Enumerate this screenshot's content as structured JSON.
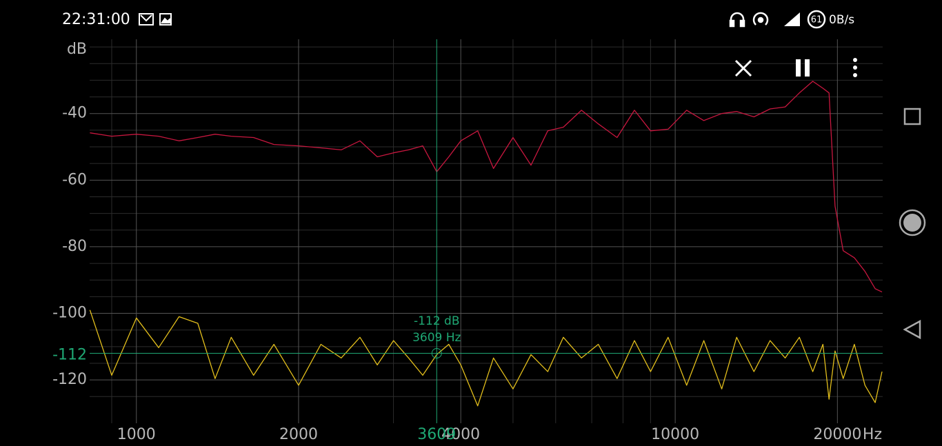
{
  "status_bar": {
    "time": "22:31:00",
    "battery": "61",
    "network_speed": "0B/s"
  },
  "chart_data": {
    "type": "line",
    "y_label": "dB",
    "x_label": "Hz",
    "log_x": true,
    "grid": true,
    "xlim": [
      819,
      24270
    ],
    "ylim": [
      -129.7,
      -17.7
    ],
    "xticks": [
      1000,
      2000,
      4000,
      10000,
      20000
    ],
    "minor_xticks": [
      900,
      3000,
      5000,
      6000,
      7000,
      8000,
      9000
    ],
    "yticks": [
      -40,
      -60,
      -80,
      -100,
      -120
    ],
    "minor_yticks": [
      -20,
      -25,
      -30,
      -35,
      -45,
      -50,
      -55,
      -65,
      -70,
      -75,
      -85,
      -90,
      -95,
      -105,
      -110,
      -115,
      -125
    ],
    "cursor": {
      "x": 3609,
      "y": -112,
      "color": "#1fa874",
      "annotations": [
        "-112 dB",
        "3609 Hz"
      ]
    },
    "x": [
      820,
      900,
      1000,
      1100,
      1200,
      1300,
      1400,
      1500,
      1650,
      1800,
      2000,
      2200,
      2400,
      2600,
      2800,
      3000,
      3200,
      3400,
      3609,
      3800,
      4000,
      4300,
      4600,
      5000,
      5400,
      5800,
      6200,
      6700,
      7200,
      7800,
      8400,
      9000,
      9700,
      10500,
      11300,
      12200,
      13000,
      14000,
      15000,
      16000,
      17000,
      18000,
      18800,
      19300,
      19800,
      20500,
      21500,
      22500,
      23500,
      24200
    ],
    "series": [
      {
        "color": "#c8173f",
        "values": [
          -45.8,
          -46.8,
          -46.2,
          -46.8,
          -48.2,
          -47.2,
          -46.2,
          -46.8,
          -47.2,
          -49.3,
          -49.7,
          -50.3,
          -50.9,
          -48.2,
          -53,
          -51.8,
          -50.9,
          -49.7,
          -57.5,
          -53,
          -48.2,
          -45.2,
          -56.5,
          -47.2,
          -55.5,
          -45.2,
          -44.1,
          -39,
          -43.1,
          -47.2,
          -39,
          -45.2,
          -44.7,
          -39,
          -42.1,
          -40,
          -39.4,
          -41,
          -38.6,
          -38,
          -33.8,
          -30.3,
          -32.4,
          -33.8,
          -67.8,
          -81.2,
          -83.3,
          -87.4,
          -92.6,
          -93.6
        ]
      },
      {
        "color": "#e3bf1c",
        "values": [
          -99,
          -118.6,
          -101.4,
          -110.3,
          -101,
          -103,
          -119.6,
          -107.2,
          -118.6,
          -109.3,
          -121.6,
          -109.3,
          -113.4,
          -107.2,
          -115.5,
          -108.2,
          -113.4,
          -118.6,
          -112.4,
          -109.3,
          -115.5,
          -127.8,
          -113.4,
          -122.7,
          -112.4,
          -117.5,
          -107.2,
          -113.4,
          -109.3,
          -119.6,
          -108.2,
          -117.5,
          -107.2,
          -121.6,
          -108.2,
          -122.7,
          -107.2,
          -117.5,
          -108.2,
          -113.4,
          -107.2,
          -117.5,
          -109.3,
          -125.8,
          -111.3,
          -119.6,
          -109.3,
          -121.6,
          -126.8,
          -117.5
        ]
      }
    ]
  }
}
